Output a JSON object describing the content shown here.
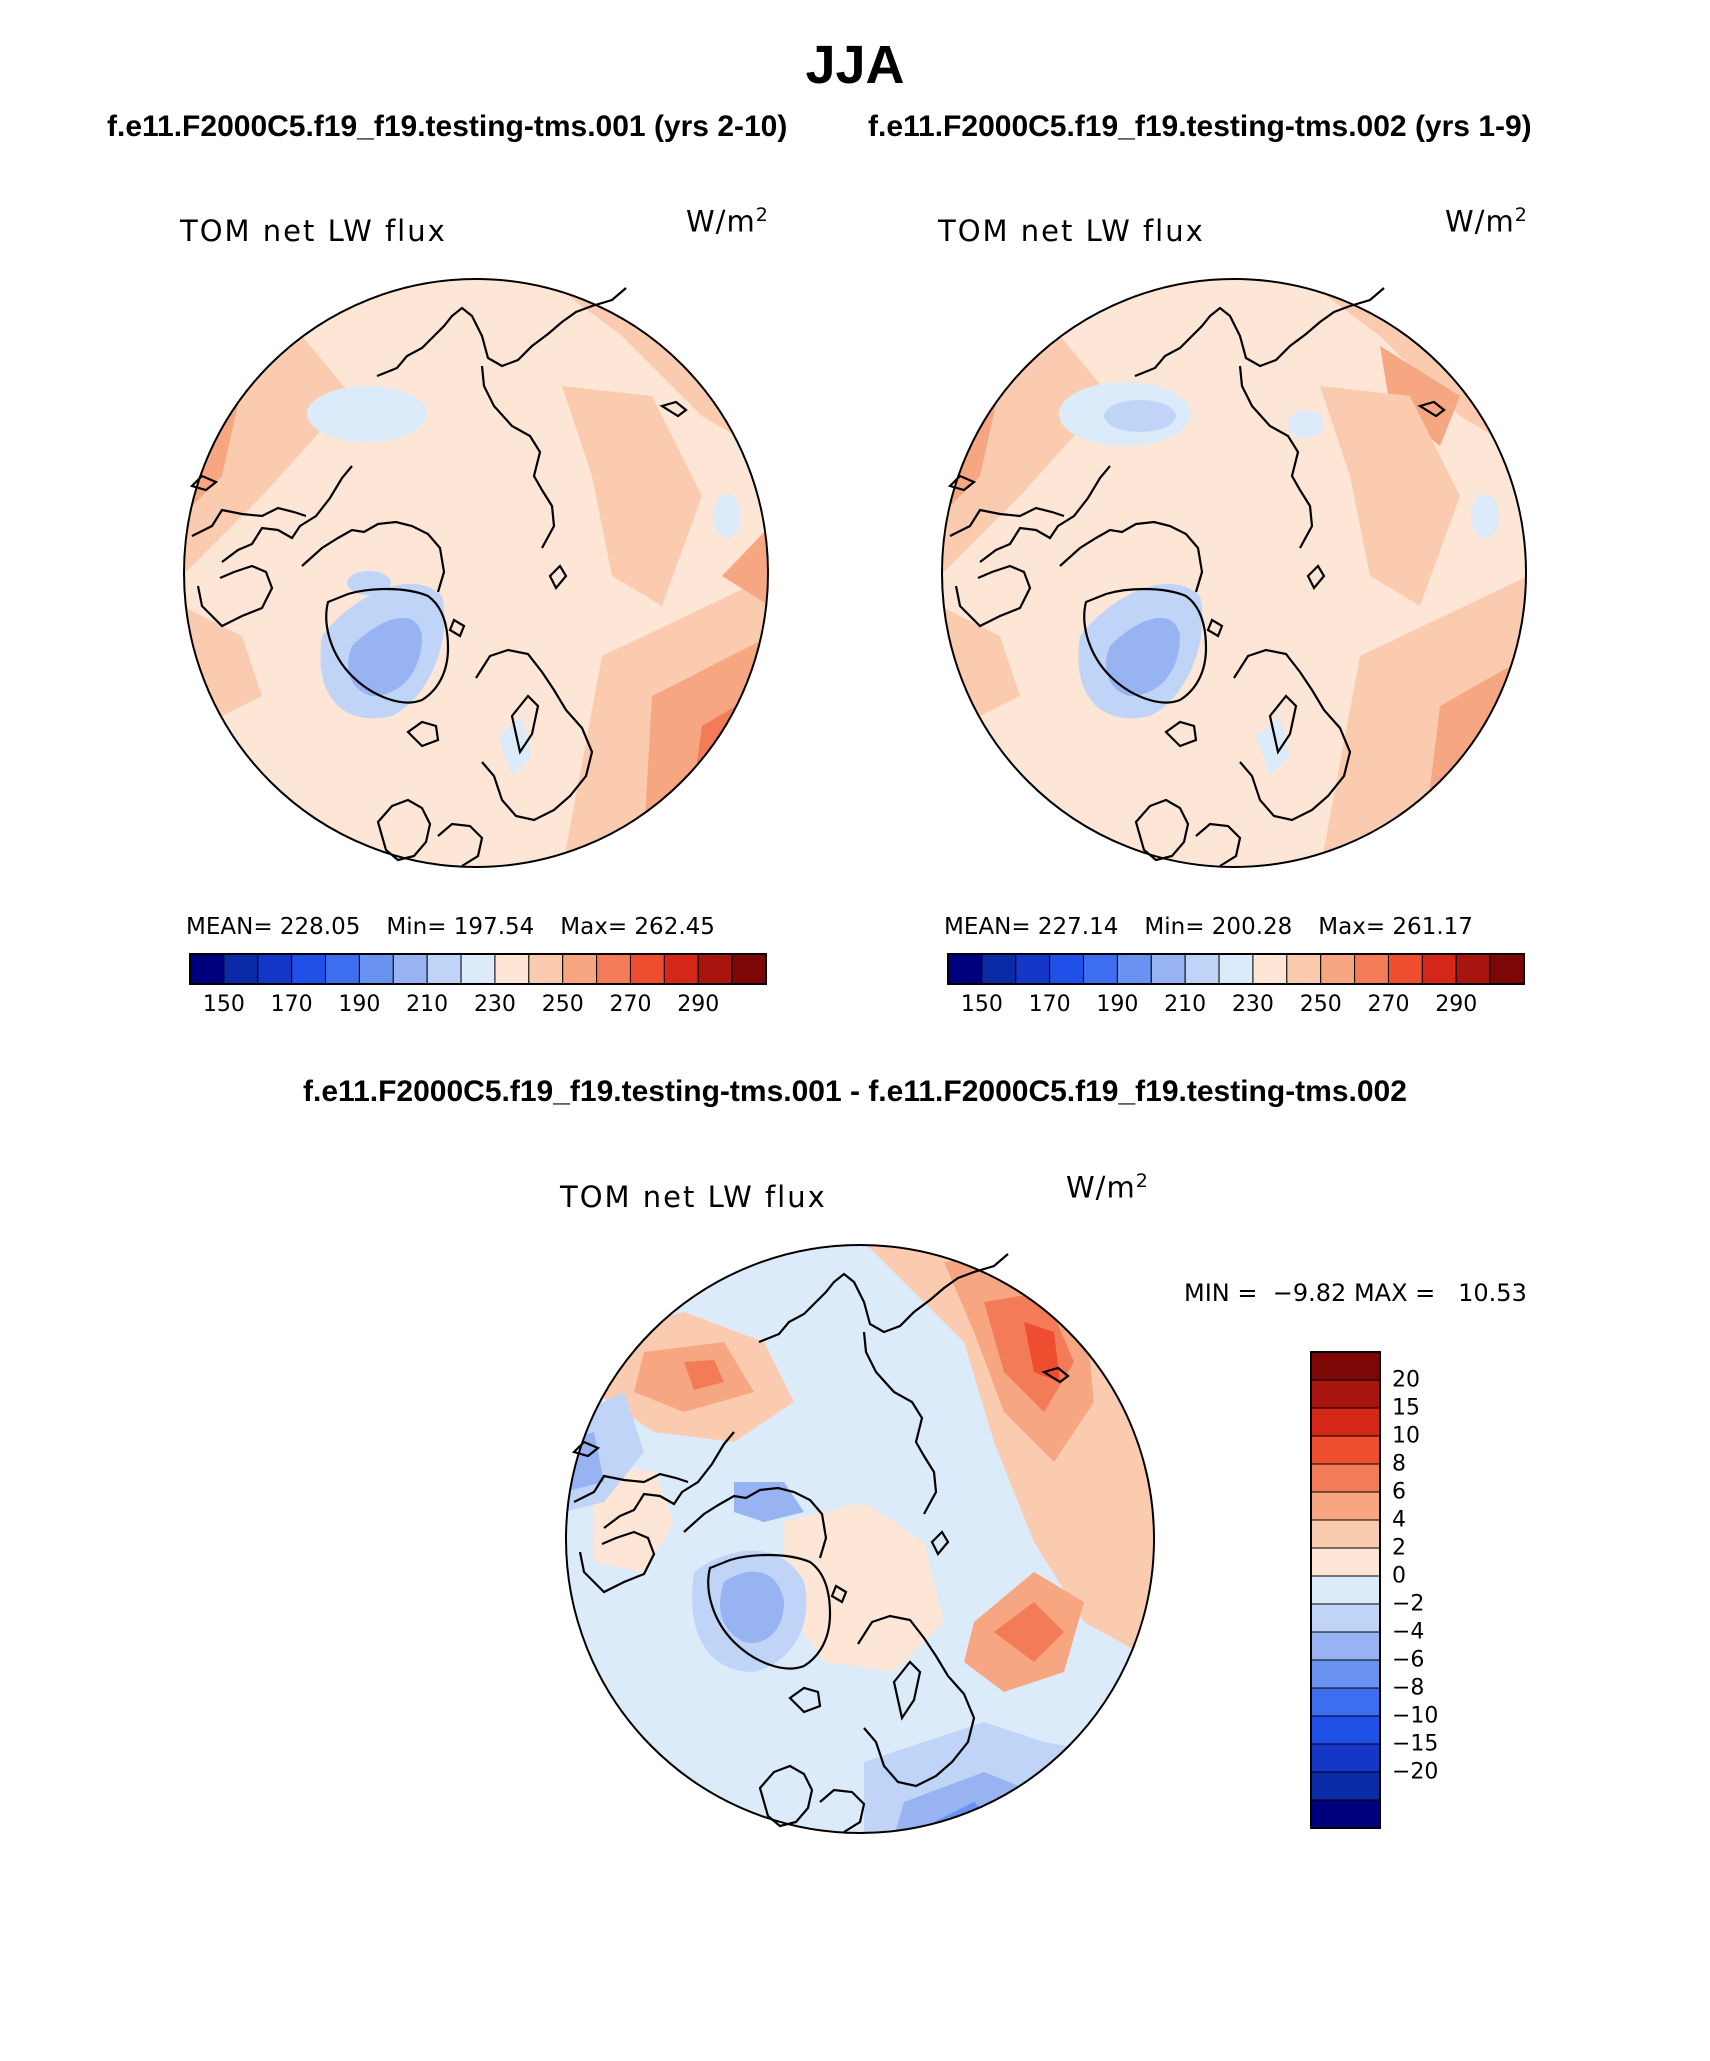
{
  "header": {
    "season": "JJA",
    "left_case": "f.e11.F2000C5.f19_f19.testing-tms.001 (yrs 2-10)",
    "right_case": "f.e11.F2000C5.f19_f19.testing-tms.002 (yrs 1-9)",
    "diff_title": "f.e11.F2000C5.f19_f19.testing-tms.001 - f.e11.F2000C5.f19_f19.testing-tms.002"
  },
  "panels": {
    "left": {
      "field": "TOM net LW flux",
      "units_base": "W/m",
      "units_exp": "2",
      "mean_label": "MEAN=",
      "mean": "228.05",
      "min_label": "Min=",
      "min": "197.54",
      "max_label": "Max=",
      "max": "262.45"
    },
    "right": {
      "field": "TOM net LW flux",
      "units_base": "W/m",
      "units_exp": "2",
      "mean_label": "MEAN=",
      "mean": "227.14",
      "min_label": "Min=",
      "min": "200.28",
      "max_label": "Max=",
      "max": "261.17"
    },
    "diff": {
      "field": "TOM net LW flux",
      "units_base": "W/m",
      "units_exp": "2",
      "min_label": "MIN =",
      "min": "−9.82",
      "max_label": "MAX =",
      "max": "10.53"
    }
  },
  "colorbars": {
    "abs": {
      "colors": [
        "#00007f",
        "#0a2aa6",
        "#1537c8",
        "#2050e8",
        "#3e6ef0",
        "#6a92f0",
        "#97b3f2",
        "#c0d4f7",
        "#dcebfa",
        "#fde6d6",
        "#fbcbb0",
        "#f7a682",
        "#f47b57",
        "#ee4d2f",
        "#d5261a",
        "#a8150f",
        "#7d0606"
      ],
      "tick_labels": [
        "150",
        "170",
        "190",
        "210",
        "230",
        "250",
        "270",
        "290"
      ]
    },
    "diff": {
      "colors": [
        "#00007f",
        "#0a2aa6",
        "#1537c8",
        "#2050e8",
        "#3e6ef0",
        "#6a92f0",
        "#97b3f2",
        "#c0d4f7",
        "#dcebfa",
        "#fde6d6",
        "#fbcbb0",
        "#f7a682",
        "#f47b57",
        "#ee4d2f",
        "#d5261a",
        "#a8150f",
        "#7d0606"
      ],
      "tick_labels": [
        "20",
        "15",
        "10",
        "8",
        "6",
        "4",
        "2",
        "0",
        "−2",
        "−4",
        "−6",
        "−8",
        "−10",
        "−15",
        "−20"
      ]
    }
  },
  "map_fills": {
    "base": "#fde6d6",
    "warm_light": "#fbcbb0",
    "warm_mid": "#f7a682",
    "warm_strong": "#f47b57",
    "warm_max": "#ee4d2f",
    "cool_light": "#dcebfa",
    "cool_mid": "#c0d4f7",
    "cool_strong": "#97b3f2",
    "cool_deep": "#6a92f0",
    "coast": "#000000"
  }
}
